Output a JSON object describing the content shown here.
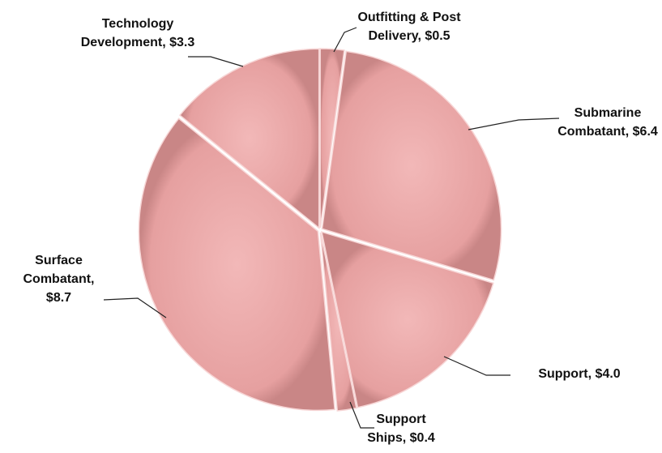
{
  "chart_data": {
    "type": "pie",
    "categories": [
      "Outfitting & Post Delivery",
      "Submarine Combatant",
      "Support",
      "Support Ships",
      "Surface Combatant",
      "Technology Development"
    ],
    "values": [
      0.5,
      6.4,
      4.0,
      0.4,
      8.7,
      3.3
    ],
    "value_labels": [
      "$0.5",
      "$6.4",
      "$4.0",
      "$0.4",
      "$8.7",
      "$3.3"
    ],
    "label_separator": ",",
    "color": "#e8a3a3"
  }
}
